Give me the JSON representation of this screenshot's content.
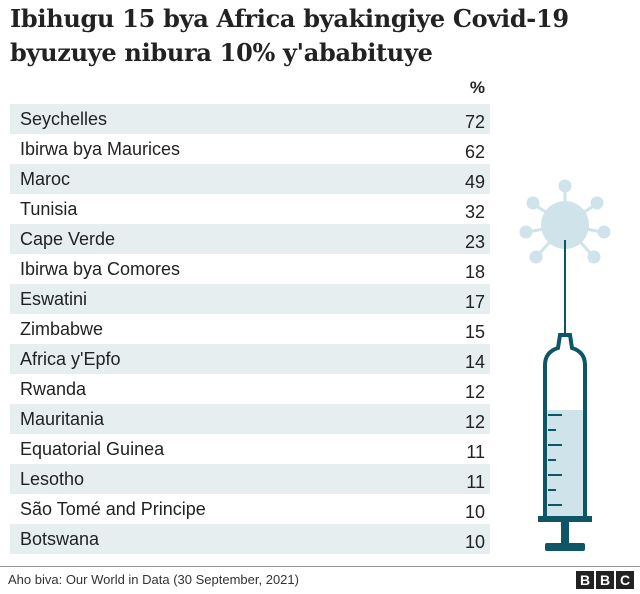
{
  "header": {
    "title_lines": [
      "Ibihugu 15 bya Africa byakingiye Covid-19",
      "byuzuye nibura 10% y'ababituye"
    ]
  },
  "table": {
    "column_header": "%",
    "rows": [
      [
        "Seychelles",
        72
      ],
      [
        "Ibirwa bya Maurices",
        62
      ],
      [
        "Maroc",
        49
      ],
      [
        "Tunisia",
        32
      ],
      [
        "Cape Verde",
        23
      ],
      [
        "Ibirwa bya Comores",
        18
      ],
      [
        "Eswatini",
        17
      ],
      [
        "Zimbabwe",
        15
      ],
      [
        "Africa y'Epfo",
        14
      ],
      [
        "Rwanda",
        12
      ],
      [
        "Mauritania",
        12
      ],
      [
        "Equatorial Guinea",
        11
      ],
      [
        "Lesotho",
        11
      ],
      [
        "São Tomé and Principe",
        10
      ],
      [
        "Botswana",
        10
      ]
    ]
  },
  "footer": {
    "source": "Aho biva: Our World in Data (30 September, 2021)",
    "logo": [
      "B",
      "B",
      "C"
    ]
  }
}
